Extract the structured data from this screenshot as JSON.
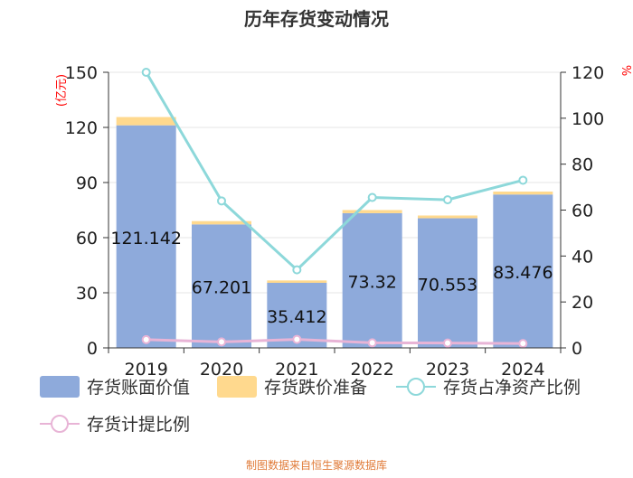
{
  "chart_data": {
    "type": "bar",
    "title": "历年存货变动情况",
    "categories": [
      "2019",
      "2020",
      "2021",
      "2022",
      "2023",
      "2024"
    ],
    "y_left": {
      "unit_label": "(亿元)",
      "ylim": [
        0,
        150
      ],
      "ticks": [
        0,
        30,
        60,
        90,
        120,
        150
      ]
    },
    "y_right": {
      "unit_label": "%",
      "ylim": [
        0,
        120
      ],
      "ticks": [
        0,
        20,
        40,
        60,
        80,
        100,
        120
      ]
    },
    "grid": true,
    "legend_placement": "bottom",
    "series": [
      {
        "name": "存货账面价值",
        "kind": "bar",
        "stack": "inv",
        "axis": "left",
        "color": "#8eaadb",
        "values": [
          121.142,
          67.201,
          35.412,
          73.32,
          70.553,
          83.476
        ]
      },
      {
        "name": "存货跌价准备",
        "kind": "bar",
        "stack": "inv",
        "axis": "left",
        "color": "#ffd98e",
        "values": [
          4.5,
          1.8,
          1.3,
          1.7,
          1.5,
          1.6
        ]
      },
      {
        "name": "存货占净资产比例",
        "kind": "line",
        "axis": "right",
        "color": "#8dd8da",
        "values": [
          120,
          64,
          34,
          65.5,
          64.5,
          73
        ]
      },
      {
        "name": "存货计提比例",
        "kind": "line",
        "axis": "right",
        "color": "#e8b4d6",
        "values": [
          3.6,
          2.6,
          3.7,
          2.2,
          2.1,
          1.9
        ]
      }
    ],
    "data_labels": [
      "121.142",
      "67.201",
      "35.412",
      "73.32",
      "70.553",
      "83.476"
    ]
  },
  "source_note": "制图数据来自恒生聚源数据库"
}
